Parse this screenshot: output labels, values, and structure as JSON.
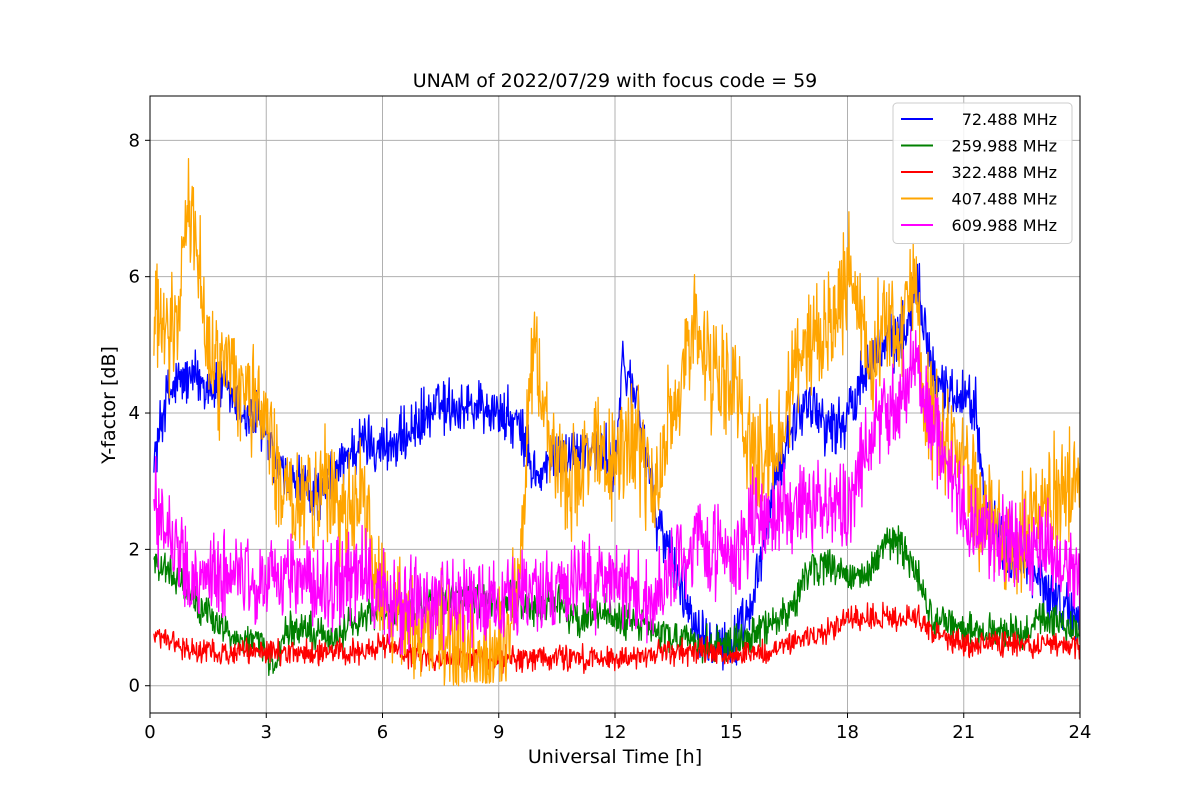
{
  "chart_data": {
    "type": "line",
    "title": "UNAM of 2022/07/29 with focus code = 59",
    "xlabel": "Universal Time [h]",
    "ylabel": "Y-factor [dB]",
    "xlim": [
      0,
      24
    ],
    "ylim": [
      -0.4,
      8.65
    ],
    "xticks": [
      0,
      3,
      6,
      9,
      12,
      15,
      18,
      21,
      24
    ],
    "yticks": [
      0,
      2,
      4,
      6,
      8
    ],
    "grid": true,
    "legend_position": "top-right",
    "series": [
      {
        "name": "72.488 MHz",
        "color": "#0000ff",
        "x": [
          0.1,
          0.4,
          0.8,
          1.2,
          1.6,
          2.0,
          2.4,
          2.8,
          3.2,
          3.5,
          4.0,
          4.5,
          5.0,
          5.5,
          6.0,
          6.5,
          7.0,
          7.5,
          8.0,
          8.5,
          9.0,
          9.5,
          10.0,
          10.5,
          11.0,
          11.5,
          12.0,
          12.2,
          12.6,
          13.0,
          13.5,
          14.0,
          14.5,
          15.0,
          15.5,
          16.0,
          16.5,
          17.0,
          17.5,
          18.0,
          18.5,
          19.0,
          19.5,
          19.8,
          20.2,
          20.6,
          21.0,
          21.3,
          21.6,
          22.0,
          22.5,
          23.0,
          23.5,
          24.0
        ],
        "y": [
          3.3,
          4.2,
          4.5,
          4.5,
          4.4,
          4.3,
          4.0,
          3.9,
          3.3,
          3.0,
          2.9,
          2.8,
          3.3,
          3.6,
          3.5,
          3.6,
          3.9,
          4.1,
          4.1,
          4.1,
          4.0,
          3.8,
          3.0,
          3.4,
          3.4,
          3.5,
          3.2,
          4.7,
          4.2,
          2.6,
          1.8,
          1.0,
          0.7,
          0.6,
          1.0,
          2.6,
          3.8,
          4.2,
          3.8,
          3.9,
          4.8,
          5.0,
          5.2,
          6.0,
          4.6,
          4.3,
          4.3,
          4.1,
          2.6,
          2.0,
          1.8,
          1.5,
          1.2,
          1.0
        ]
      },
      {
        "name": "259.988 MHz",
        "color": "#008000",
        "x": [
          0.1,
          0.4,
          0.8,
          1.2,
          1.6,
          2.0,
          2.4,
          2.8,
          3.2,
          3.5,
          4.0,
          4.5,
          5.0,
          5.5,
          6.0,
          6.5,
          7.0,
          7.5,
          8.0,
          8.5,
          9.0,
          9.5,
          10.0,
          10.5,
          11.0,
          11.5,
          12.0,
          12.5,
          13.0,
          13.5,
          14.0,
          14.5,
          15.0,
          15.5,
          16.0,
          16.5,
          17.0,
          17.5,
          18.0,
          18.5,
          19.0,
          19.5,
          19.8,
          20.2,
          20.6,
          21.0,
          21.5,
          22.0,
          22.5,
          23.0,
          23.5,
          24.0
        ],
        "y": [
          1.9,
          1.7,
          1.5,
          1.2,
          1.0,
          0.8,
          0.7,
          0.6,
          0.3,
          0.8,
          0.8,
          0.7,
          0.8,
          1.0,
          1.1,
          1.0,
          1.2,
          1.2,
          1.3,
          1.2,
          1.2,
          1.3,
          1.1,
          1.2,
          1.0,
          1.1,
          1.0,
          0.9,
          0.8,
          0.7,
          0.6,
          0.6,
          0.6,
          0.7,
          0.9,
          1.1,
          1.7,
          1.8,
          1.6,
          1.6,
          2.1,
          2.0,
          1.6,
          1.0,
          0.9,
          0.8,
          0.8,
          0.8,
          0.7,
          1.0,
          0.9,
          0.8
        ]
      },
      {
        "name": "322.488 MHz",
        "color": "#ff0000",
        "x": [
          0.1,
          0.4,
          0.8,
          1.2,
          1.6,
          2.0,
          2.4,
          2.8,
          3.2,
          3.5,
          4.0,
          4.5,
          5.0,
          5.5,
          6.0,
          6.5,
          7.0,
          7.5,
          8.0,
          8.5,
          9.0,
          9.5,
          10.0,
          10.5,
          11.0,
          11.5,
          12.0,
          12.5,
          13.0,
          13.5,
          14.0,
          14.5,
          15.0,
          15.5,
          16.0,
          16.5,
          17.0,
          17.5,
          18.0,
          18.5,
          19.0,
          19.5,
          19.8,
          20.2,
          20.6,
          21.0,
          21.5,
          22.0,
          22.5,
          23.0,
          23.5,
          24.0
        ],
        "y": [
          0.7,
          0.7,
          0.6,
          0.5,
          0.5,
          0.5,
          0.5,
          0.5,
          0.5,
          0.5,
          0.5,
          0.5,
          0.5,
          0.5,
          0.6,
          0.5,
          0.4,
          0.4,
          0.4,
          0.4,
          0.4,
          0.4,
          0.4,
          0.4,
          0.4,
          0.4,
          0.4,
          0.4,
          0.5,
          0.5,
          0.5,
          0.5,
          0.4,
          0.5,
          0.5,
          0.6,
          0.7,
          0.8,
          1.0,
          1.0,
          1.0,
          1.0,
          1.0,
          0.8,
          0.7,
          0.6,
          0.6,
          0.6,
          0.6,
          0.6,
          0.6,
          0.6
        ]
      },
      {
        "name": "407.488 MHz",
        "color": "#ffa500",
        "x": [
          0.1,
          0.4,
          0.7,
          0.9,
          1.2,
          1.5,
          1.8,
          2.1,
          2.4,
          2.7,
          3.0,
          3.3,
          3.6,
          4.0,
          4.5,
          5.0,
          5.5,
          6.0,
          6.5,
          7.0,
          7.5,
          8.0,
          8.5,
          8.8,
          9.2,
          9.6,
          9.9,
          10.2,
          10.5,
          11.0,
          11.5,
          12.0,
          12.5,
          13.0,
          13.5,
          14.0,
          14.5,
          15.0,
          15.5,
          16.0,
          16.5,
          17.0,
          17.5,
          18.0,
          18.3,
          18.6,
          19.0,
          19.3,
          19.7,
          20.0,
          20.4,
          20.8,
          21.2,
          21.6,
          22.0,
          22.5,
          23.0,
          23.5,
          24.0
        ],
        "y": [
          5.5,
          5.0,
          5.4,
          7.0,
          6.6,
          5.0,
          4.5,
          4.7,
          4.4,
          4.3,
          3.8,
          3.0,
          2.8,
          2.7,
          3.0,
          2.6,
          2.7,
          1.2,
          0.9,
          0.8,
          0.7,
          0.6,
          0.5,
          0.3,
          0.6,
          2.0,
          5.0,
          4.0,
          3.2,
          3.0,
          3.5,
          3.2,
          3.8,
          2.8,
          4.2,
          5.3,
          4.6,
          4.4,
          3.5,
          3.2,
          4.2,
          5.0,
          5.3,
          6.0,
          5.5,
          4.6,
          5.5,
          5.0,
          6.0,
          4.2,
          3.8,
          3.5,
          3.0,
          2.4,
          2.0,
          2.2,
          2.6,
          2.8,
          2.9
        ]
      },
      {
        "name": "609.988 MHz",
        "color": "#ff00ff",
        "x": [
          0.1,
          0.4,
          0.7,
          1.0,
          1.4,
          1.8,
          2.2,
          2.6,
          3.0,
          3.5,
          4.0,
          4.5,
          5.0,
          5.5,
          6.0,
          6.5,
          7.0,
          7.5,
          8.0,
          8.5,
          9.0,
          9.5,
          10.0,
          10.5,
          11.0,
          11.5,
          12.0,
          12.5,
          13.0,
          13.5,
          14.0,
          14.5,
          15.0,
          15.5,
          16.0,
          16.5,
          17.0,
          17.5,
          18.0,
          18.3,
          18.7,
          19.0,
          19.4,
          19.8,
          20.2,
          20.6,
          21.0,
          21.5,
          22.0,
          22.5,
          23.0,
          23.5,
          24.0
        ],
        "y": [
          2.7,
          2.2,
          2.0,
          1.5,
          1.5,
          1.6,
          1.6,
          1.5,
          1.5,
          1.7,
          1.6,
          1.4,
          1.5,
          1.6,
          1.3,
          1.2,
          1.2,
          1.3,
          1.2,
          1.2,
          1.1,
          1.3,
          1.3,
          1.4,
          1.5,
          1.5,
          1.5,
          1.4,
          1.2,
          1.8,
          2.0,
          2.1,
          1.8,
          2.4,
          2.4,
          2.6,
          2.6,
          2.7,
          2.6,
          3.0,
          3.8,
          4.0,
          4.2,
          4.8,
          3.8,
          3.0,
          2.6,
          2.2,
          2.2,
          2.0,
          2.0,
          2.0,
          1.5
        ]
      }
    ]
  }
}
